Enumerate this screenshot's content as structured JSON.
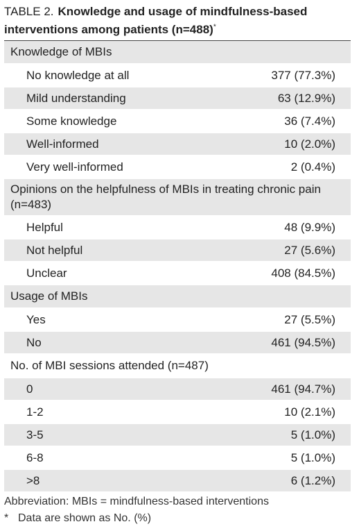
{
  "title": {
    "label": "TABLE 2.",
    "text": "Knowledge and usage of mindfulness-based interventions among patients (n=488)",
    "marker": "*"
  },
  "table": {
    "sections": [
      {
        "heading": "Knowledge of MBIs",
        "rows": [
          [
            "No knowledge at all",
            "377 (77.3%)"
          ],
          [
            "Mild understanding",
            "63 (12.9%)"
          ],
          [
            "Some knowledge",
            "36 (7.4%)"
          ],
          [
            "Well-informed",
            "10 (2.0%)"
          ],
          [
            "Very well-informed",
            "2 (0.4%)"
          ]
        ]
      },
      {
        "heading": "Opinions on the helpfulness of MBIs in treating chronic pain (n=483)",
        "rows": [
          [
            "Helpful",
            "48 (9.9%)"
          ],
          [
            "Not helpful",
            "27 (5.6%)"
          ],
          [
            "Unclear",
            "408 (84.5%)"
          ]
        ]
      },
      {
        "heading": "Usage of MBIs",
        "rows": [
          [
            "Yes",
            "27 (5.5%)"
          ],
          [
            "No",
            "461 (94.5%)"
          ]
        ]
      },
      {
        "heading": "No. of MBI sessions attended (n=487)",
        "rows": [
          [
            "0",
            "461 (94.7%)"
          ],
          [
            "1-2",
            "10 (2.1%)"
          ],
          [
            "3-5",
            "5 (1.0%)"
          ],
          [
            "6-8",
            "5 (1.0%)"
          ],
          [
            ">8",
            "6 (1.2%)"
          ]
        ]
      }
    ]
  },
  "footnotes": {
    "abbreviation": "Abbreviation: MBIs = mindfulness-based interventions",
    "note": {
      "marker": "*",
      "text": "Data are shown as No. (%)"
    }
  }
}
